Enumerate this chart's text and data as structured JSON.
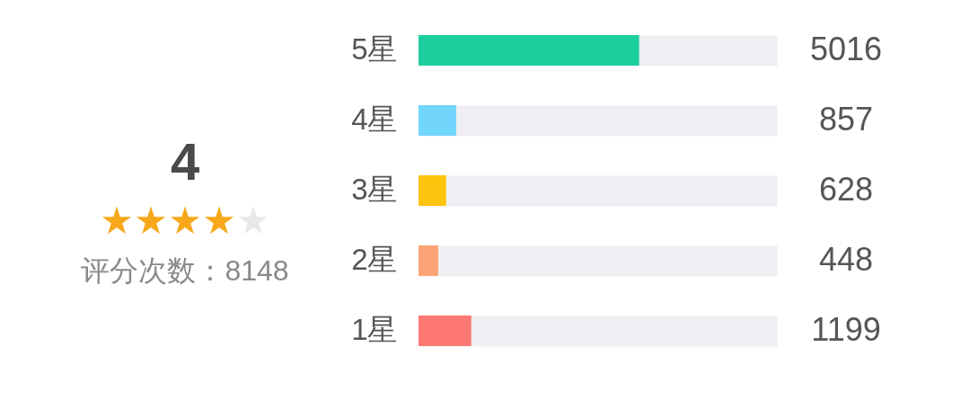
{
  "chart_data": [
    {
      "type": "other",
      "values": [
        4
      ],
      "data_labels": true,
      "color": "#f6a81a",
      "annotations": [
        "评分次数：8148"
      ]
    },
    {
      "type": "bar",
      "orientation": "horizontal",
      "categories": [
        "5星",
        "4星",
        "3星",
        "2星",
        "1星"
      ],
      "values": [
        5016,
        857,
        628,
        448,
        1199
      ],
      "colors": [
        "#1dcf9e",
        "#72d5fc",
        "#fdc40e",
        "#fca476",
        "#fd7873"
      ],
      "xlim": [
        0,
        8148
      ],
      "tick_labels": "y",
      "grid": "y",
      "data_labels": true
    }
  ]
}
